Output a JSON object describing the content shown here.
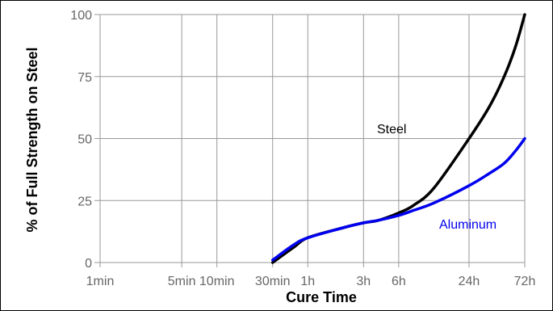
{
  "chart_data": {
    "type": "line",
    "title": "",
    "xlabel": "Cure Time",
    "ylabel": "% of Full Strength on Steel",
    "x_ticks": [
      "1min",
      "5min",
      "10min",
      "30min",
      "1h",
      "3h",
      "6h",
      "24h",
      "72h"
    ],
    "y_ticks": [
      "0",
      "25",
      "50",
      "75",
      "100"
    ],
    "ylim": [
      0,
      100
    ],
    "grid": true,
    "series": [
      {
        "name": "Steel",
        "color": "#000000",
        "x": [
          "30min",
          "45min",
          "1h",
          "2h",
          "3h",
          "4h",
          "6h",
          "8h",
          "12h",
          "24h",
          "36h",
          "48h",
          "60h",
          "72h"
        ],
        "y": [
          0,
          6,
          10,
          14,
          16,
          17,
          20,
          23,
          30,
          50,
          63,
          75,
          87,
          100
        ]
      },
      {
        "name": "Aluminum",
        "color": "#0000ee",
        "x": [
          "30min",
          "45min",
          "1h",
          "2h",
          "3h",
          "4h",
          "6h",
          "8h",
          "12h",
          "24h",
          "36h",
          "48h",
          "60h",
          "72h"
        ],
        "y": [
          1,
          7,
          10,
          14,
          16,
          17,
          19,
          21,
          24,
          31,
          36,
          40,
          45,
          50
        ]
      }
    ],
    "annotations": [
      {
        "text": "Steel",
        "color": "#000000"
      },
      {
        "text": "Aluminum",
        "color": "#0000ee"
      }
    ]
  }
}
